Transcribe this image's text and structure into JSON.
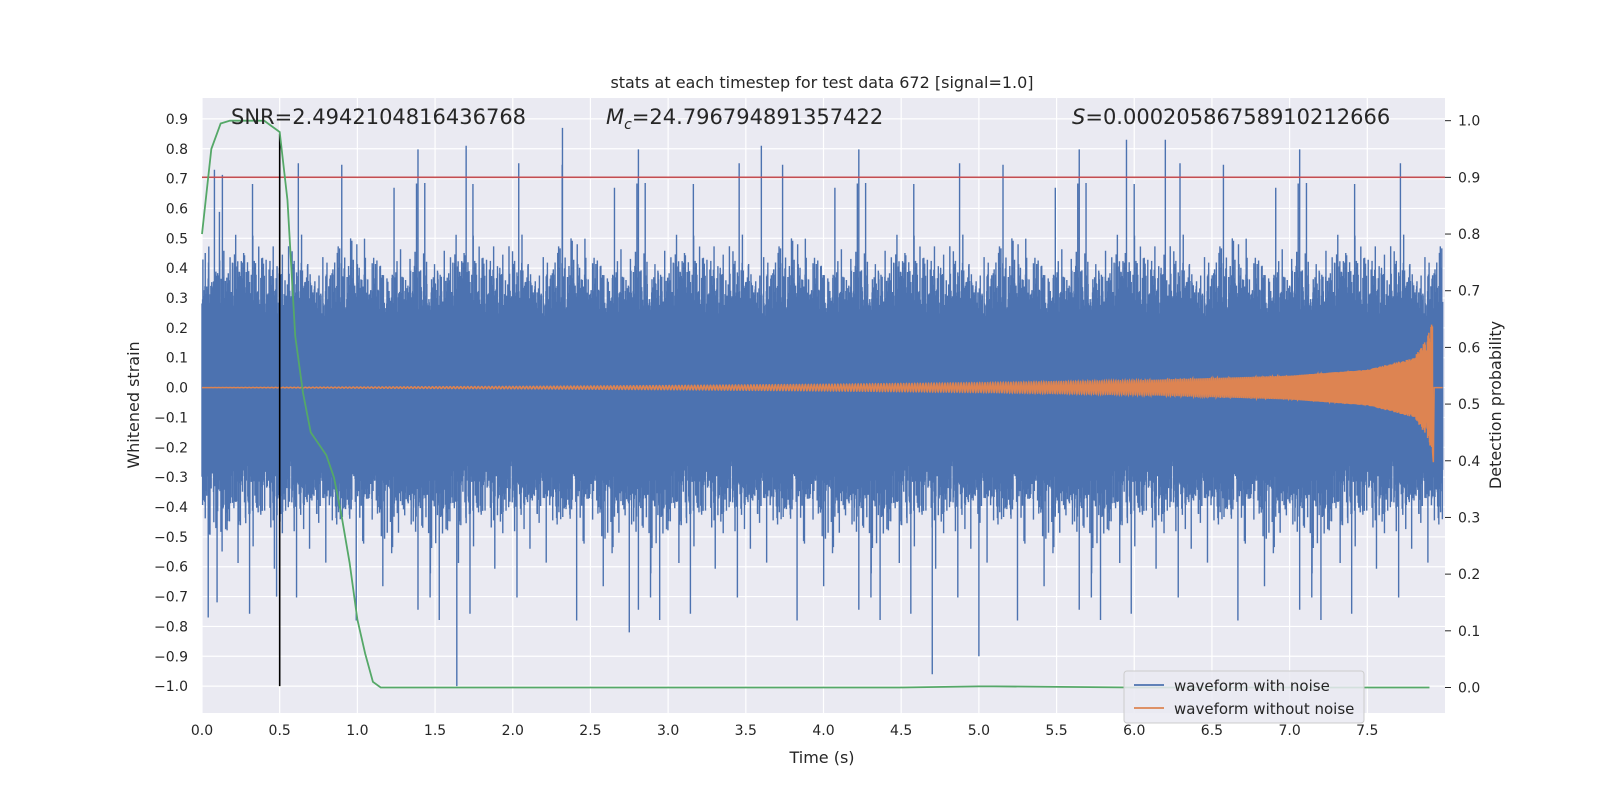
{
  "chart_data": {
    "type": "line",
    "title": "stats at each timestep for test data 672 [signal=1.0]",
    "xlabel": "Time (s)",
    "ylabel_left": "Whitened strain",
    "ylabel_right": "Detection probability",
    "xlim": [
      0.0,
      8.0
    ],
    "ylim_left": [
      -1.09,
      0.97
    ],
    "ylim_right": [
      -0.045,
      1.04
    ],
    "grid": true,
    "x_ticks": [
      0.0,
      0.5,
      1.0,
      1.5,
      2.0,
      2.5,
      3.0,
      3.5,
      4.0,
      4.5,
      5.0,
      5.5,
      6.0,
      6.5,
      7.0,
      7.5
    ],
    "x_tick_labels": [
      "0.0",
      "0.5",
      "1.0",
      "1.5",
      "2.0",
      "2.5",
      "3.0",
      "3.5",
      "4.0",
      "4.5",
      "5.0",
      "5.5",
      "6.0",
      "6.5",
      "7.0",
      "7.5"
    ],
    "y_left_ticks": [
      0.9,
      0.8,
      0.7,
      0.6,
      0.5,
      0.4,
      0.3,
      0.2,
      0.1,
      0.0,
      -0.1,
      -0.2,
      -0.3,
      -0.4,
      -0.5,
      -0.6,
      -0.7,
      -0.8,
      -0.9,
      -1.0
    ],
    "y_left_tick_labels": [
      "0.9",
      "0.8",
      "0.7",
      "0.6",
      "0.5",
      "0.4",
      "0.3",
      "0.2",
      "0.1",
      "0.0",
      "−0.1",
      "−0.2",
      "−0.3",
      "−0.4",
      "−0.5",
      "−0.6",
      "−0.7",
      "−0.8",
      "−0.9",
      "−1.0"
    ],
    "y_right_ticks": [
      1.0,
      0.9,
      0.8,
      0.7,
      0.6,
      0.5,
      0.4,
      0.3,
      0.2,
      0.1,
      0.0
    ],
    "y_right_tick_labels": [
      "1.0",
      "0.9",
      "0.8",
      "0.7",
      "0.6",
      "0.5",
      "0.4",
      "0.3",
      "0.2",
      "0.1",
      "0.0"
    ],
    "annotations": [
      {
        "text": "SNR=2.4942104816436768",
        "x": 0.2
      },
      {
        "text": "M_c=24.796794891357422",
        "x": 2.6
      },
      {
        "text": "S=0.00020586758910212666",
        "x": 5.6
      }
    ],
    "annotation_labels": {
      "snr": "SNR=2.4942104816436768",
      "mc_symbol": "M",
      "mc_sub": "c",
      "mc_value": "=24.796794891357422",
      "s_symbol": "S",
      "s_value": "=0.00020586758910212666"
    },
    "threshold": {
      "axis": "right",
      "value": 0.9,
      "color": "#c44e52"
    },
    "vertical_marker": {
      "x": 0.5,
      "y_range": [
        -1.0,
        0.85
      ],
      "color": "#000000"
    },
    "series": [
      {
        "name": "waveform with noise",
        "axis": "left",
        "color": "#4c72b0",
        "description": "whitened strain noise, Gaussian, envelope approx +/-0.4 with spikes to ~0.88 and down to ~-1.0",
        "envelope": {
          "typical_max": 0.4,
          "typical_min": -0.45,
          "spike_max": 0.88,
          "spike_min": -1.0
        },
        "notable_spikes": [
          {
            "x": 0.04,
            "y": -0.77
          },
          {
            "x": 0.08,
            "y": 0.73
          },
          {
            "x": 0.48,
            "y": -0.7
          },
          {
            "x": 1.64,
            "y": -1.0
          },
          {
            "x": 2.32,
            "y": 0.87
          },
          {
            "x": 2.75,
            "y": -0.82
          },
          {
            "x": 4.7,
            "y": -0.96
          },
          {
            "x": 5.0,
            "y": -0.9
          },
          {
            "x": 5.95,
            "y": 0.83
          },
          {
            "x": 6.2,
            "y": 0.83
          },
          {
            "x": 1.7,
            "y": 0.81
          },
          {
            "x": 3.6,
            "y": 0.81
          }
        ]
      },
      {
        "name": "waveform without noise",
        "axis": "left",
        "color": "#dd8452",
        "description": "chirp signal: amplitude grows from ~0 to ~0.22 at merger near t=7.92 s",
        "t_merger": 7.92,
        "amplitude_envelope": [
          [
            0.0,
            0.0
          ],
          [
            2.0,
            0.004
          ],
          [
            3.0,
            0.007
          ],
          [
            4.0,
            0.011
          ],
          [
            5.0,
            0.016
          ],
          [
            6.0,
            0.024
          ],
          [
            7.0,
            0.04
          ],
          [
            7.5,
            0.06
          ],
          [
            7.8,
            0.1
          ],
          [
            7.88,
            0.16
          ],
          [
            7.92,
            0.22
          ]
        ],
        "end_drop": -0.25
      },
      {
        "name": "detection probability",
        "axis": "right",
        "color": "#55a868",
        "x": [
          0.0,
          0.06,
          0.12,
          0.18,
          0.25,
          0.3,
          0.35,
          0.4,
          0.45,
          0.5,
          0.55,
          0.6,
          0.65,
          0.7,
          0.75,
          0.8,
          0.85,
          0.9,
          0.95,
          1.0,
          1.05,
          1.1,
          1.15,
          1.2,
          1.3,
          2.0,
          3.0,
          4.0,
          4.5,
          5.0,
          5.1,
          6.0,
          7.0,
          7.9
        ],
        "y": [
          0.8,
          0.95,
          0.995,
          1.0,
          1.0,
          1.0,
          1.0,
          1.0,
          0.99,
          0.98,
          0.86,
          0.62,
          0.52,
          0.45,
          0.43,
          0.41,
          0.37,
          0.3,
          0.22,
          0.12,
          0.06,
          0.01,
          0.0,
          0.0,
          0.0,
          0.0,
          0.0,
          0.0,
          0.0,
          0.002,
          0.002,
          0.0,
          0.0,
          0.0
        ]
      }
    ],
    "legend": {
      "placement": "lower-right",
      "entries": [
        {
          "label": "waveform with noise",
          "color": "#4c72b0"
        },
        {
          "label": "waveform without noise",
          "color": "#dd8452"
        }
      ]
    },
    "colors": {
      "plot_background": "#eaeaf2",
      "grid": "#ffffff"
    }
  }
}
